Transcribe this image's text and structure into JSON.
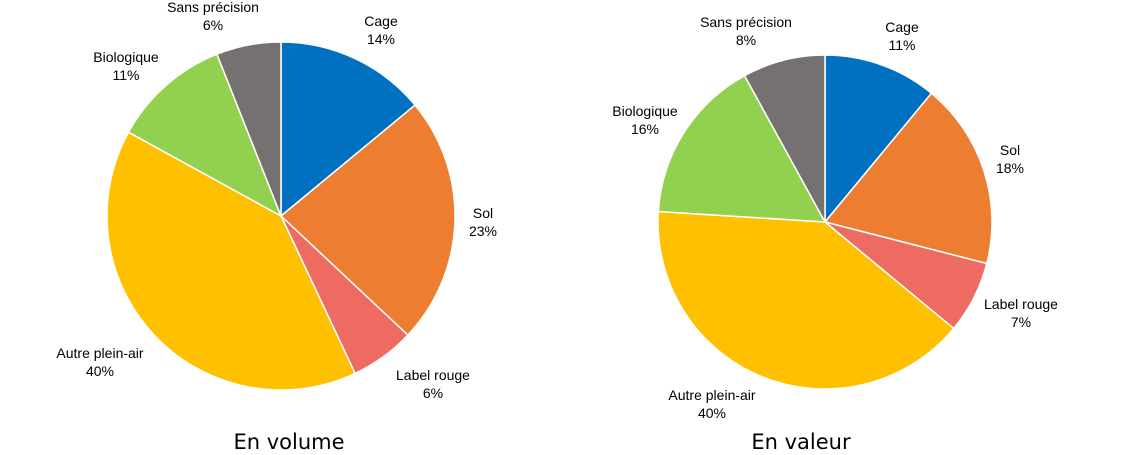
{
  "chart_data": [
    {
      "type": "pie",
      "title": "En volume",
      "start_angle_deg": 0,
      "direction": "clockwise",
      "slices": [
        {
          "label": "Cage",
          "value": 14,
          "value_label": "14%",
          "color": "#0070C0"
        },
        {
          "label": "Sol",
          "value": 23,
          "value_label": "23%",
          "color": "#ED7D31"
        },
        {
          "label": "Label rouge",
          "value": 6,
          "value_label": "6%",
          "color": "#EE6B62"
        },
        {
          "label": "Autre plein-air",
          "value": 40,
          "value_label": "40%",
          "color": "#FFC000"
        },
        {
          "label": "Biologique",
          "value": 11,
          "value_label": "11%",
          "color": "#92D050"
        },
        {
          "label": "Sans précision",
          "value": 6,
          "value_label": "6%",
          "color": "#767171"
        }
      ]
    },
    {
      "type": "pie",
      "title": "En valeur",
      "start_angle_deg": 0,
      "direction": "clockwise",
      "slices": [
        {
          "label": "Cage",
          "value": 11,
          "value_label": "11%",
          "color": "#0070C0"
        },
        {
          "label": "Sol",
          "value": 18,
          "value_label": "18%",
          "color": "#ED7D31"
        },
        {
          "label": "Label rouge",
          "value": 7,
          "value_label": "7%",
          "color": "#EE6B62"
        },
        {
          "label": "Autre plein-air",
          "value": 40,
          "value_label": "40%",
          "color": "#FFC000"
        },
        {
          "label": "Biologique",
          "value": 16,
          "value_label": "16%",
          "color": "#92D050"
        },
        {
          "label": "Sans précision",
          "value": 8,
          "value_label": "8%",
          "color": "#767171"
        }
      ]
    }
  ]
}
